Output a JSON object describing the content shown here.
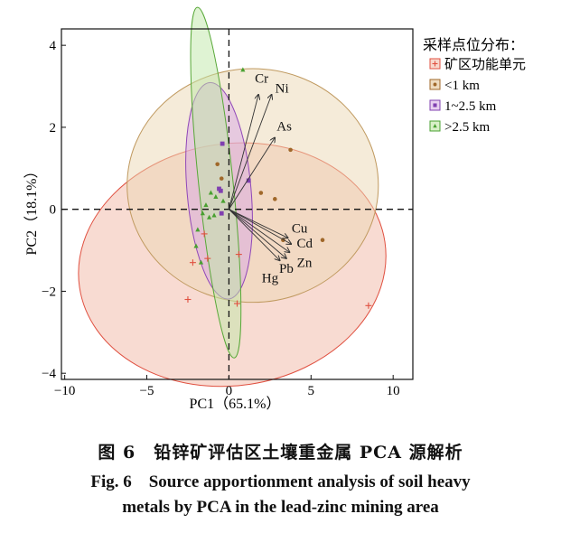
{
  "chart_data": {
    "type": "scatter",
    "title": "",
    "xlabel": "PC1（65.1%）",
    "ylabel": "PC2（18.1%）",
    "xlim": [
      -10.2,
      11.2
    ],
    "ylim": [
      -4.15,
      4.4
    ],
    "xticks": [
      -10,
      -5,
      0,
      5,
      10
    ],
    "yticks": [
      -4,
      -2,
      0,
      2,
      4
    ],
    "xtick_labels": [
      "−10",
      "−5",
      "0",
      "5",
      "10"
    ],
    "ytick_labels": [
      "−4",
      "−2",
      "0",
      "2",
      "4"
    ],
    "grid": false,
    "reference_lines": {
      "x": 0,
      "y": 0,
      "style": "dashed"
    },
    "legend": {
      "title": "采样点位分布：",
      "position": "right",
      "entries": [
        {
          "label": "矿区功能单元",
          "marker": "plus",
          "color": "#e05040",
          "fill": "#f8d8cc"
        },
        {
          "label": "<1 km",
          "marker": "circle",
          "color": "#a0682a",
          "fill": "#eedcc0"
        },
        {
          "label": "1~2.5 km",
          "marker": "square",
          "color": "#8040b0",
          "fill": "#e8d0f0"
        },
        {
          "label": ">2.5 km",
          "marker": "triangle",
          "color": "#48a030",
          "fill": "#d8f0c8"
        }
      ]
    },
    "loadings": [
      {
        "name": "Cr",
        "x": 1.8,
        "y": 2.8
      },
      {
        "name": "Ni",
        "x": 2.6,
        "y": 2.8
      },
      {
        "name": "As",
        "x": 2.8,
        "y": 1.75
      },
      {
        "name": "Cu",
        "x": 3.6,
        "y": -0.7
      },
      {
        "name": "Cd",
        "x": 3.8,
        "y": -0.85
      },
      {
        "name": "Zn",
        "x": 3.7,
        "y": -1.05
      },
      {
        "name": "Pb",
        "x": 3.5,
        "y": -1.2
      },
      {
        "name": "Hg",
        "x": 3.1,
        "y": -1.25
      }
    ],
    "ellipses": [
      {
        "group": "矿区功能单元",
        "cx": 0.2,
        "cy": -1.35,
        "rx": 9.4,
        "ry": 2.95,
        "angle": -8.5,
        "stroke": "#e05040",
        "fill": "#f2b7a6"
      },
      {
        "group": "<1 km",
        "cx": 1.45,
        "cy": 0.58,
        "rx": 7.65,
        "ry": 2.85,
        "angle": 0,
        "stroke": "#c09a60",
        "fill": "#ecd8b4"
      },
      {
        "group": "1~2.5 km",
        "cx": -0.6,
        "cy": 0.45,
        "rx": 1.95,
        "ry": 2.65,
        "angle": -5,
        "stroke": "#9048b8",
        "fill": "#d8a8e6"
      },
      {
        "group": ">2.5 km",
        "cx": -0.8,
        "cy": 0.65,
        "rx": 1.05,
        "ry": 4.3,
        "angle": -6,
        "stroke": "#58a838",
        "fill": "#c0e8a8"
      }
    ],
    "series": [
      {
        "name": "矿区功能单元",
        "marker": "plus",
        "color": "#e05040",
        "points": [
          [
            -2.2,
            -1.3
          ],
          [
            -2.5,
            -2.2
          ],
          [
            -1.3,
            -1.2
          ],
          [
            0.5,
            -2.3
          ],
          [
            0.6,
            -1.1
          ],
          [
            8.5,
            -2.35
          ],
          [
            -1.5,
            -0.6
          ]
        ]
      },
      {
        "name": "<1 km",
        "marker": "circle",
        "color": "#a0682a",
        "points": [
          [
            1.95,
            0.4
          ],
          [
            3.75,
            1.45
          ],
          [
            5.7,
            -0.75
          ],
          [
            2.8,
            0.25
          ],
          [
            -0.7,
            1.1
          ],
          [
            -0.45,
            0.75
          ],
          [
            3.3,
            -0.75
          ]
        ]
      },
      {
        "name": "1~2.5 km",
        "marker": "square",
        "color": "#8040b0",
        "points": [
          [
            -0.4,
            1.6
          ],
          [
            -0.5,
            0.45
          ],
          [
            -0.45,
            -0.1
          ],
          [
            1.2,
            0.7
          ],
          [
            -0.6,
            0.5
          ]
        ]
      },
      {
        "name": ">2.5 km",
        "marker": "triangle",
        "color": "#48a030",
        "points": [
          [
            0.85,
            3.4
          ],
          [
            -1.1,
            0.4
          ],
          [
            -0.8,
            0.3
          ],
          [
            -1.6,
            -0.1
          ],
          [
            -1.9,
            -0.5
          ],
          [
            -2.0,
            -0.9
          ],
          [
            -1.7,
            -1.3
          ],
          [
            -1.2,
            -0.2
          ],
          [
            -0.9,
            -0.15
          ],
          [
            -0.35,
            0.2
          ],
          [
            -1.4,
            0.1
          ]
        ]
      }
    ]
  },
  "caption": {
    "cn": "图 6　铅锌矿评估区土壤重金属 PCA 源解析",
    "en_line1": "Fig. 6　Source apportionment analysis of soil heavy",
    "en_line2": "metals by PCA in the lead-zinc mining area"
  }
}
